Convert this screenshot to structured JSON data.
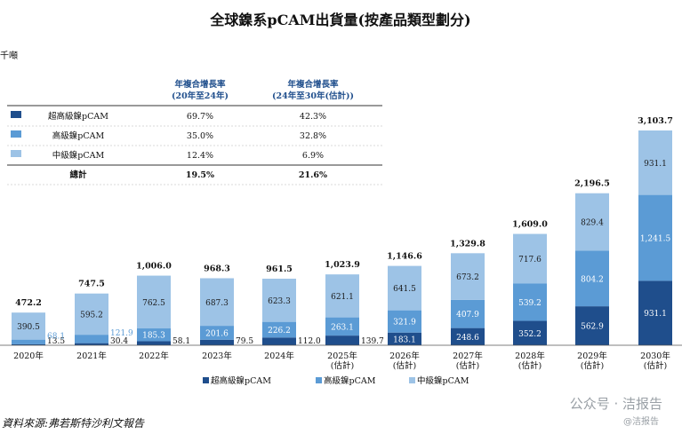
{
  "chart_data": {
    "type": "stacked-bar",
    "title": "全球鎳系pCAM出貨量(按產品類型劃分)",
    "unit": "千噸",
    "source": "資料來源:弗若斯特沙利文報告",
    "categories": [
      "2020年",
      "2021年",
      "2022年",
      "2023年",
      "2024年",
      "2025年\n(估計)",
      "2026年\n(估計)",
      "2027年\n(估計)",
      "2028年\n(估計)",
      "2029年\n(估計)",
      "2030年\n(估計)"
    ],
    "series": [
      {
        "name": "超高級鎳pCAM",
        "color": "#1f4e8c",
        "values": [
          13.5,
          30.4,
          58.1,
          79.5,
          112.0,
          139.7,
          183.1,
          248.6,
          352.2,
          562.9,
          931.1
        ]
      },
      {
        "name": "高級鎳pCAM",
        "color": "#5b9bd5",
        "values": [
          68.1,
          121.9,
          185.3,
          201.6,
          226.2,
          263.1,
          321.9,
          407.9,
          539.2,
          804.2,
          1241.5
        ]
      },
      {
        "name": "中級鎳pCAM",
        "color": "#9dc3e6",
        "values": [
          390.5,
          595.2,
          762.5,
          687.3,
          623.3,
          621.1,
          641.5,
          673.2,
          717.6,
          829.4,
          931.1
        ]
      }
    ],
    "totals": [
      "472.2",
      "747.5",
      "1,006.0",
      "968.3",
      "961.5",
      "1,023.9",
      "1,146.6",
      "1,329.8",
      "1,609.0",
      "2,196.5",
      "3,103.7"
    ],
    "value_labels": {
      "ultra": [
        "13.5",
        "30.4",
        "58.1",
        "79.5",
        "112.0",
        "139.7",
        "183.1",
        "248.6",
        "352.2",
        "562.9",
        "931.1"
      ],
      "high": [
        "68.1",
        "121.9",
        "185.3",
        "201.6",
        "226.2",
        "263.1",
        "321.9",
        "407.9",
        "539.2",
        "804.2",
        "1,241.5"
      ],
      "mid": [
        "390.5",
        "595.2",
        "762.5",
        "687.3",
        "623.3",
        "621.1",
        "641.5",
        "673.2",
        "717.6",
        "829.4",
        "931.1"
      ]
    },
    "legend": [
      "超高級鎳pCAM",
      "高級鎳pCAM",
      "中級鎳pCAM"
    ],
    "cagr_table": {
      "headers": [
        "年複合增長率\n(20年至24年)",
        "年複合增長率\n(24年至30年(估計))"
      ],
      "rows": [
        {
          "label": "超高級鎳pCAM",
          "c1": "69.7%",
          "c2": "42.3%",
          "color": "#1f4e8c"
        },
        {
          "label": "高級鎳pCAM",
          "c1": "35.0%",
          "c2": "32.8%",
          "color": "#5b9bd5"
        },
        {
          "label": "中級鎳pCAM",
          "c1": "12.4%",
          "c2": "6.9%",
          "color": "#9dc3e6"
        },
        {
          "label": "總計",
          "c1": "19.5%",
          "c2": "21.6%",
          "color": ""
        }
      ]
    }
  },
  "watermark": {
    "main": "公众号 · 洁报告",
    "sub": "@洁报告"
  }
}
